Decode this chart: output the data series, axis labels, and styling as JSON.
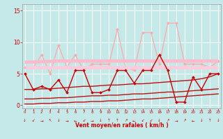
{
  "x": [
    0,
    1,
    2,
    3,
    4,
    5,
    6,
    7,
    8,
    9,
    10,
    11,
    12,
    13,
    14,
    15,
    16,
    17,
    18,
    19,
    20,
    21,
    22,
    23
  ],
  "series": {
    "light_pink_line": [
      6.0,
      6.0,
      8.0,
      5.0,
      9.5,
      6.0,
      8.0,
      5.5,
      6.5,
      6.5,
      6.5,
      12.0,
      6.0,
      5.5,
      11.5,
      11.5,
      6.5,
      13.0,
      13.0,
      6.5,
      6.5,
      6.5,
      6.0,
      7.0
    ],
    "pink_trend_upper": [
      6.8,
      6.85,
      6.9,
      6.95,
      7.0,
      7.0,
      7.0,
      7.0,
      7.0,
      7.0,
      7.0,
      7.0,
      7.0,
      7.0,
      7.0,
      7.0,
      7.0,
      7.0,
      7.0,
      7.0,
      7.0,
      7.0,
      7.0,
      7.0
    ],
    "pink_trend_lower": [
      6.0,
      6.0,
      6.0,
      6.0,
      6.0,
      6.0,
      6.0,
      6.0,
      6.0,
      6.0,
      6.0,
      6.0,
      6.0,
      6.0,
      6.0,
      6.0,
      6.0,
      6.0,
      6.0,
      6.0,
      6.0,
      6.0,
      6.0,
      6.0
    ],
    "dark_red_line": [
      5.0,
      2.5,
      3.0,
      2.5,
      4.0,
      2.0,
      5.5,
      5.5,
      2.0,
      2.0,
      2.5,
      5.5,
      5.5,
      3.5,
      5.5,
      5.5,
      8.0,
      5.5,
      0.5,
      0.5,
      4.5,
      2.5,
      5.0,
      5.0
    ],
    "dark_red_trend1": [
      2.5,
      2.5,
      2.6,
      2.6,
      2.7,
      2.8,
      2.9,
      3.0,
      3.0,
      3.1,
      3.2,
      3.2,
      3.3,
      3.4,
      3.4,
      3.5,
      3.6,
      3.7,
      3.8,
      3.9,
      4.0,
      4.2,
      4.5,
      5.0
    ],
    "dark_red_trend2": [
      1.0,
      1.0,
      1.1,
      1.1,
      1.2,
      1.2,
      1.3,
      1.4,
      1.5,
      1.5,
      1.6,
      1.6,
      1.7,
      1.8,
      1.8,
      1.9,
      2.0,
      2.1,
      2.1,
      2.2,
      2.3,
      2.4,
      2.5,
      2.6
    ],
    "dark_red_trend3": [
      0.2,
      0.2,
      0.3,
      0.3,
      0.4,
      0.4,
      0.5,
      0.5,
      0.6,
      0.6,
      0.7,
      0.7,
      0.8,
      0.9,
      1.0,
      1.0,
      1.1,
      1.2,
      1.3,
      1.4,
      1.5,
      1.6,
      1.7,
      1.8
    ]
  },
  "bgcolor": "#c5e8e8",
  "grid_color": "#ffffff",
  "xlabel": "Vent moyen/en rafales ( km/h )",
  "ylabel_ticks": [
    0,
    5,
    10,
    15
  ],
  "xlim": [
    -0.3,
    23.3
  ],
  "ylim": [
    -0.5,
    16
  ],
  "colors": {
    "light_pink_line": "#ffaaaa",
    "pink_trend_upper": "#ffbbcc",
    "pink_trend_lower": "#ffccdd",
    "dark_red_line": "#cc0000",
    "dark_red_trend1": "#bb1111",
    "dark_red_trend2": "#bb1111",
    "dark_red_trend3": "#bb1111"
  },
  "marker": "D",
  "markersize": 2.0,
  "arrow_chars": [
    "↓",
    "↙",
    "→",
    "↖",
    "↓",
    "→",
    "←",
    "↙",
    "→",
    "↓",
    "↑",
    "↑",
    "↗",
    "←",
    "↙",
    "↙",
    "↓",
    "↗",
    "→",
    "↗",
    "←",
    "↓",
    "↑",
    "↓"
  ]
}
